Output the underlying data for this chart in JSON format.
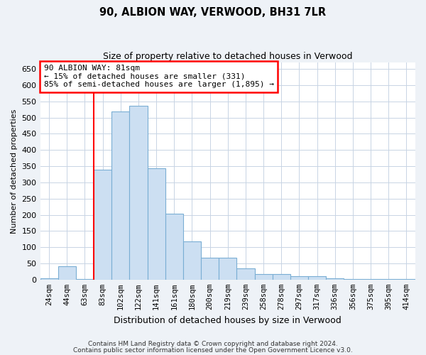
{
  "title1": "90, ALBION WAY, VERWOOD, BH31 7LR",
  "title2": "Size of property relative to detached houses in Verwood",
  "xlabel": "Distribution of detached houses by size in Verwood",
  "ylabel": "Number of detached properties",
  "categories": [
    "24sqm",
    "44sqm",
    "63sqm",
    "83sqm",
    "102sqm",
    "122sqm",
    "141sqm",
    "161sqm",
    "180sqm",
    "200sqm",
    "219sqm",
    "239sqm",
    "258sqm",
    "278sqm",
    "297sqm",
    "317sqm",
    "336sqm",
    "356sqm",
    "375sqm",
    "395sqm",
    "414sqm"
  ],
  "values": [
    3,
    41,
    2,
    339,
    519,
    537,
    344,
    204,
    118,
    67,
    67,
    35,
    18,
    18,
    11,
    11,
    4,
    1,
    1,
    1,
    1
  ],
  "bar_color": "#ccdff2",
  "bar_edge_color": "#7aaed4",
  "annotation_text": "90 ALBION WAY: 81sqm\n← 15% of detached houses are smaller (331)\n85% of semi-detached houses are larger (1,895) →",
  "annotation_box_color": "white",
  "annotation_box_edge_color": "red",
  "vline_x_index": 3,
  "ylim": [
    0,
    670
  ],
  "yticks": [
    0,
    50,
    100,
    150,
    200,
    250,
    300,
    350,
    400,
    450,
    500,
    550,
    600,
    650
  ],
  "footer1": "Contains HM Land Registry data © Crown copyright and database right 2024.",
  "footer2": "Contains public sector information licensed under the Open Government Licence v3.0.",
  "background_color": "#eef2f7",
  "plot_bg_color": "#ffffff",
  "grid_color": "#c8d4e4"
}
